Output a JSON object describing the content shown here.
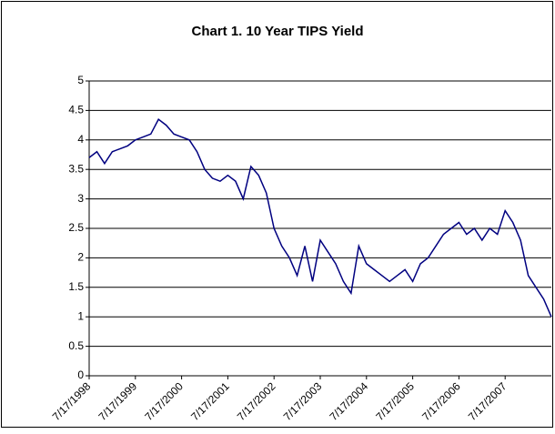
{
  "chart_data": {
    "type": "line",
    "title": "Chart 1. 10 Year TIPS Yield",
    "categories": [
      "7/17/1998",
      null,
      null,
      null,
      null,
      null,
      "7/17/1999",
      null,
      null,
      null,
      null,
      null,
      "7/17/2000",
      null,
      null,
      null,
      null,
      null,
      "7/17/2001",
      null,
      null,
      null,
      null,
      null,
      "7/17/2002",
      null,
      null,
      null,
      null,
      null,
      "7/17/2003",
      null,
      null,
      null,
      null,
      null,
      "7/17/2004",
      null,
      null,
      null,
      null,
      null,
      "7/17/2005",
      null,
      null,
      null,
      null,
      null,
      "7/17/2006",
      null,
      null,
      null,
      null,
      null,
      "7/17/2007",
      null,
      null,
      null,
      null,
      null,
      null
    ],
    "series": [
      {
        "name": "10 Year TIPS Yield",
        "color": "#000080",
        "values": [
          3.7,
          3.8,
          3.6,
          3.8,
          3.85,
          3.9,
          4.0,
          4.05,
          4.1,
          4.35,
          4.25,
          4.1,
          4.05,
          4.0,
          3.8,
          3.5,
          3.35,
          3.3,
          3.4,
          3.3,
          3.0,
          3.55,
          3.4,
          3.1,
          2.5,
          2.2,
          2.0,
          1.7,
          2.2,
          1.6,
          2.3,
          2.1,
          1.9,
          1.6,
          1.4,
          2.2,
          1.9,
          1.8,
          1.7,
          1.6,
          1.7,
          1.8,
          1.6,
          1.9,
          2.0,
          2.2,
          2.4,
          2.5,
          2.6,
          2.4,
          2.5,
          2.3,
          2.5,
          2.4,
          2.8,
          2.6,
          2.3,
          1.7,
          1.5,
          1.3,
          1.0
        ]
      }
    ],
    "ylim": [
      0,
      5
    ],
    "yticks": [
      0,
      0.5,
      1,
      1.5,
      2,
      2.5,
      3,
      3.5,
      4,
      4.5,
      5
    ],
    "grid": true
  }
}
